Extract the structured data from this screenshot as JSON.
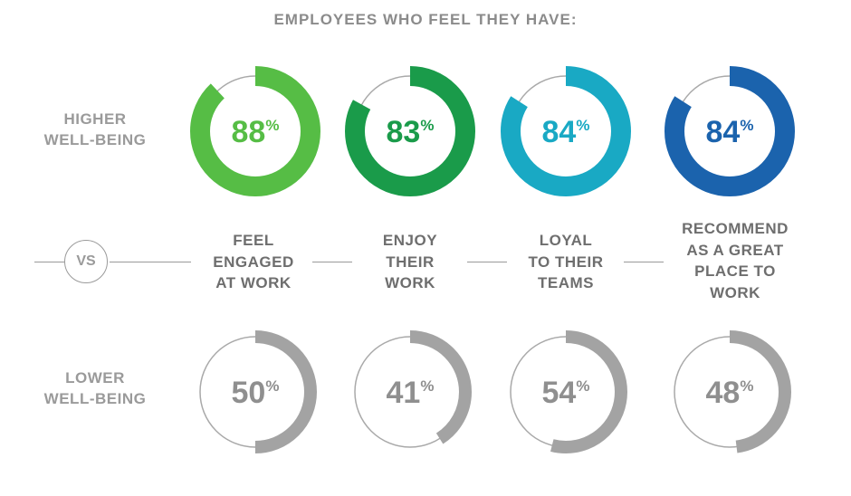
{
  "title": "EMPLOYEES WHO FEEL THEY HAVE:",
  "row_labels": {
    "higher": [
      "HIGHER",
      "WELL-BEING"
    ],
    "lower": [
      "LOWER",
      "WELL-BEING"
    ]
  },
  "vs_label": "VS",
  "colors": {
    "track": "#a9a9a9",
    "lower_fill": "#a3a3a3",
    "higher": [
      "#56bd45",
      "#1a9b4a",
      "#19a9c4",
      "#1b63ad"
    ]
  },
  "chart_data": {
    "type": "donut",
    "categories": [
      [
        "FEEL",
        "ENGAGED",
        "AT WORK"
      ],
      [
        "ENJOY",
        "THEIR",
        "WORK"
      ],
      [
        "LOYAL",
        "TO THEIR",
        "TEAMS"
      ],
      [
        "RECOMMEND",
        "AS A GREAT",
        "PLACE TO",
        "WORK"
      ]
    ],
    "series": [
      {
        "name": "HIGHER WELL-BEING",
        "values": [
          88,
          83,
          84,
          84
        ]
      },
      {
        "name": "LOWER WELL-BEING",
        "values": [
          50,
          41,
          54,
          48
        ]
      }
    ],
    "unit": "%"
  }
}
